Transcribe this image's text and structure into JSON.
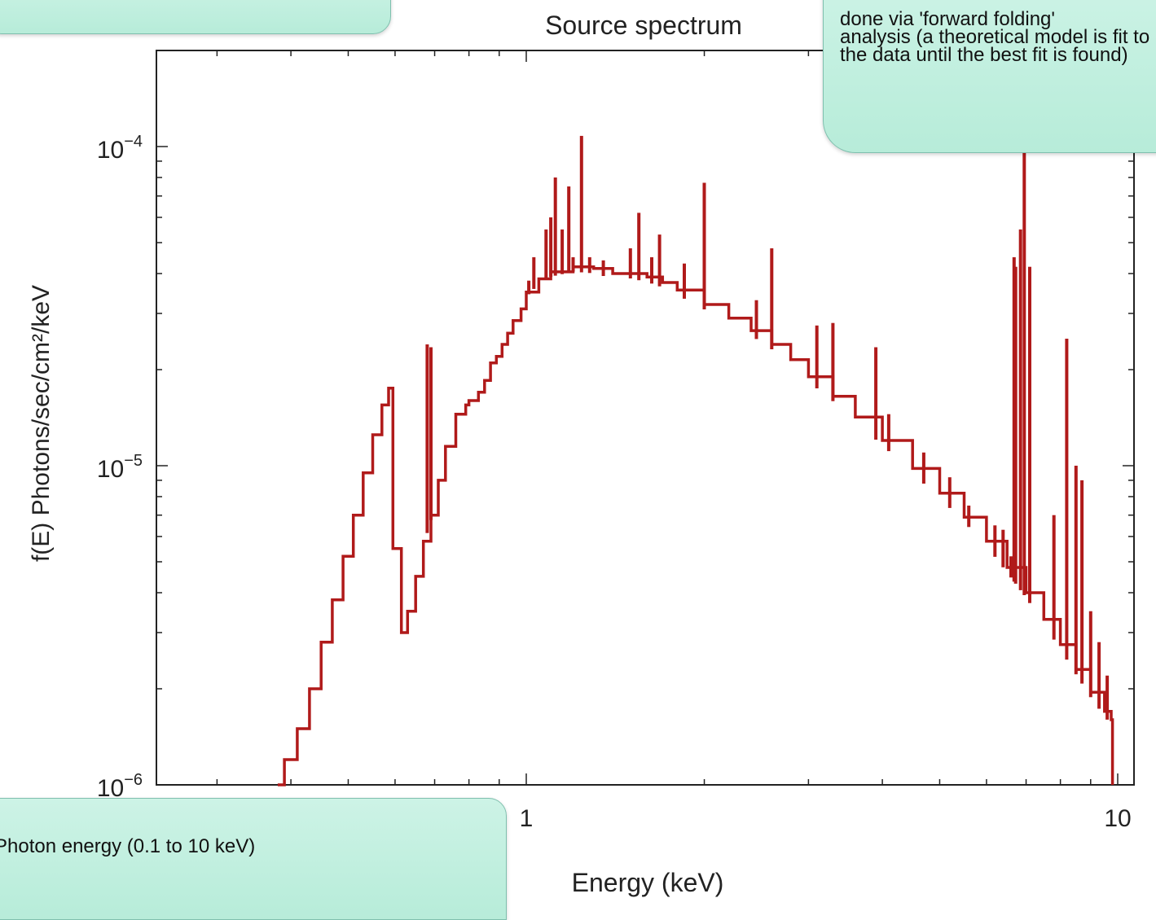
{
  "chart_data": {
    "type": "line",
    "title": "Source spectrum",
    "xlabel": "Energy (keV)",
    "ylabel": "f(E)  Photons/sec/cm²/keV",
    "x_scale": "log",
    "y_scale": "log",
    "xlim": [
      0.25,
      10.5
    ],
    "ylim": [
      1e-06,
      0.0002
    ],
    "x_tick_labels": [
      "1",
      "10"
    ],
    "y_tick_labels": [
      {
        "base": "10",
        "exp": "−4"
      },
      {
        "base": "10",
        "exp": "−5"
      },
      {
        "base": "10",
        "exp": "−6"
      }
    ],
    "line_color": "#b01a1a",
    "continuum": [
      [
        0.38,
        1e-06
      ],
      [
        0.39,
        1.2e-06
      ],
      [
        0.41,
        1.5e-06
      ],
      [
        0.43,
        2e-06
      ],
      [
        0.45,
        2.8e-06
      ],
      [
        0.47,
        3.8e-06
      ],
      [
        0.49,
        5.2e-06
      ],
      [
        0.51,
        7e-06
      ],
      [
        0.53,
        9.5e-06
      ],
      [
        0.55,
        1.25e-05
      ],
      [
        0.57,
        1.55e-05
      ],
      [
        0.585,
        1.75e-05
      ],
      [
        0.59,
        1.75e-05
      ],
      [
        0.595,
        5.5e-06
      ],
      [
        0.61,
        5.5e-06
      ],
      [
        0.615,
        3e-06
      ],
      [
        0.625,
        3e-06
      ],
      [
        0.63,
        3.5e-06
      ],
      [
        0.65,
        4.5e-06
      ],
      [
        0.67,
        5.8e-06
      ],
      [
        0.69,
        7e-06
      ],
      [
        0.71,
        9e-06
      ],
      [
        0.73,
        1.15e-05
      ],
      [
        0.76,
        1.45e-05
      ],
      [
        0.79,
        1.55e-05
      ],
      [
        0.8,
        1.6e-05
      ],
      [
        0.83,
        1.7e-05
      ],
      [
        0.85,
        1.85e-05
      ],
      [
        0.87,
        2.1e-05
      ],
      [
        0.89,
        2.2e-05
      ],
      [
        0.91,
        2.4e-05
      ],
      [
        0.93,
        2.6e-05
      ],
      [
        0.95,
        2.85e-05
      ],
      [
        0.98,
        3.1e-05
      ],
      [
        1.0,
        3.5e-05
      ],
      [
        1.05,
        3.85e-05
      ],
      [
        1.1,
        4.05e-05
      ],
      [
        1.2,
        4.2e-05
      ],
      [
        1.3,
        4.15e-05
      ],
      [
        1.4,
        4e-05
      ],
      [
        1.5,
        4e-05
      ],
      [
        1.6,
        3.9e-05
      ],
      [
        1.7,
        3.75e-05
      ],
      [
        1.8,
        3.55e-05
      ],
      [
        2.0,
        3.2e-05
      ],
      [
        2.2,
        2.9e-05
      ],
      [
        2.4,
        2.65e-05
      ],
      [
        2.6,
        2.4e-05
      ],
      [
        2.8,
        2.15e-05
      ],
      [
        3.0,
        1.9e-05
      ],
      [
        3.3,
        1.65e-05
      ],
      [
        3.6,
        1.42e-05
      ],
      [
        4.0,
        1.2e-05
      ],
      [
        4.5,
        9.8e-06
      ],
      [
        5.0,
        8.2e-06
      ],
      [
        5.5,
        6.9e-06
      ],
      [
        6.0,
        5.8e-06
      ],
      [
        6.5,
        4.8e-06
      ],
      [
        7.0,
        4e-06
      ],
      [
        7.5,
        3.3e-06
      ],
      [
        8.0,
        2.75e-06
      ],
      [
        8.5,
        2.3e-06
      ],
      [
        9.0,
        1.95e-06
      ],
      [
        9.5,
        1.7e-06
      ],
      [
        9.75,
        1.6e-06
      ],
      [
        9.8,
        1e-06
      ]
    ],
    "lines": [
      [
        0.68,
        2.4e-05
      ],
      [
        0.69,
        2.35e-05
      ],
      [
        1.01,
        3.8e-05
      ],
      [
        1.03,
        4.5e-05
      ],
      [
        1.08,
        5.5e-05
      ],
      [
        1.1,
        6e-05
      ],
      [
        1.12,
        8e-05
      ],
      [
        1.15,
        5.5e-05
      ],
      [
        1.18,
        7.5e-05
      ],
      [
        1.2,
        4.5e-05
      ],
      [
        1.24,
        0.000108
      ],
      [
        1.28,
        4.5e-05
      ],
      [
        1.35,
        4.4e-05
      ],
      [
        1.5,
        4.8e-05
      ],
      [
        1.55,
        6.2e-05
      ],
      [
        1.63,
        4.5e-05
      ],
      [
        1.68,
        5.3e-05
      ],
      [
        1.85,
        4.3e-05
      ],
      [
        2.0,
        7.7e-05
      ],
      [
        2.45,
        3.3e-05
      ],
      [
        2.6,
        4.8e-05
      ],
      [
        3.1,
        2.75e-05
      ],
      [
        3.3,
        2.8e-05
      ],
      [
        3.9,
        2.35e-05
      ],
      [
        4.1,
        1.45e-05
      ],
      [
        4.7,
        1.1e-05
      ],
      [
        5.2,
        9.2e-06
      ],
      [
        5.6,
        7.5e-06
      ],
      [
        6.2,
        6.5e-06
      ],
      [
        6.4,
        6.3e-06
      ],
      [
        6.6,
        5.2e-06
      ],
      [
        6.68,
        4.5e-05
      ],
      [
        6.72,
        4.2e-05
      ],
      [
        6.85,
        5.5e-05
      ],
      [
        6.95,
        0.00012
      ],
      [
        7.1,
        4.2e-05
      ],
      [
        7.8,
        7e-06
      ],
      [
        8.2,
        2.5e-05
      ],
      [
        8.5,
        1e-05
      ],
      [
        8.7,
        9e-06
      ],
      [
        9.0,
        3.5e-06
      ],
      [
        9.3,
        2.8e-06
      ],
      [
        9.6,
        2.2e-06
      ]
    ]
  },
  "callouts": {
    "top_left": "",
    "top_right": "done via 'forward folding'\nanalysis (a theoretical model is fit to\nthe data until the best fit is found)",
    "bottom_left": "Photon energy (0.1 to 10 keV)"
  }
}
